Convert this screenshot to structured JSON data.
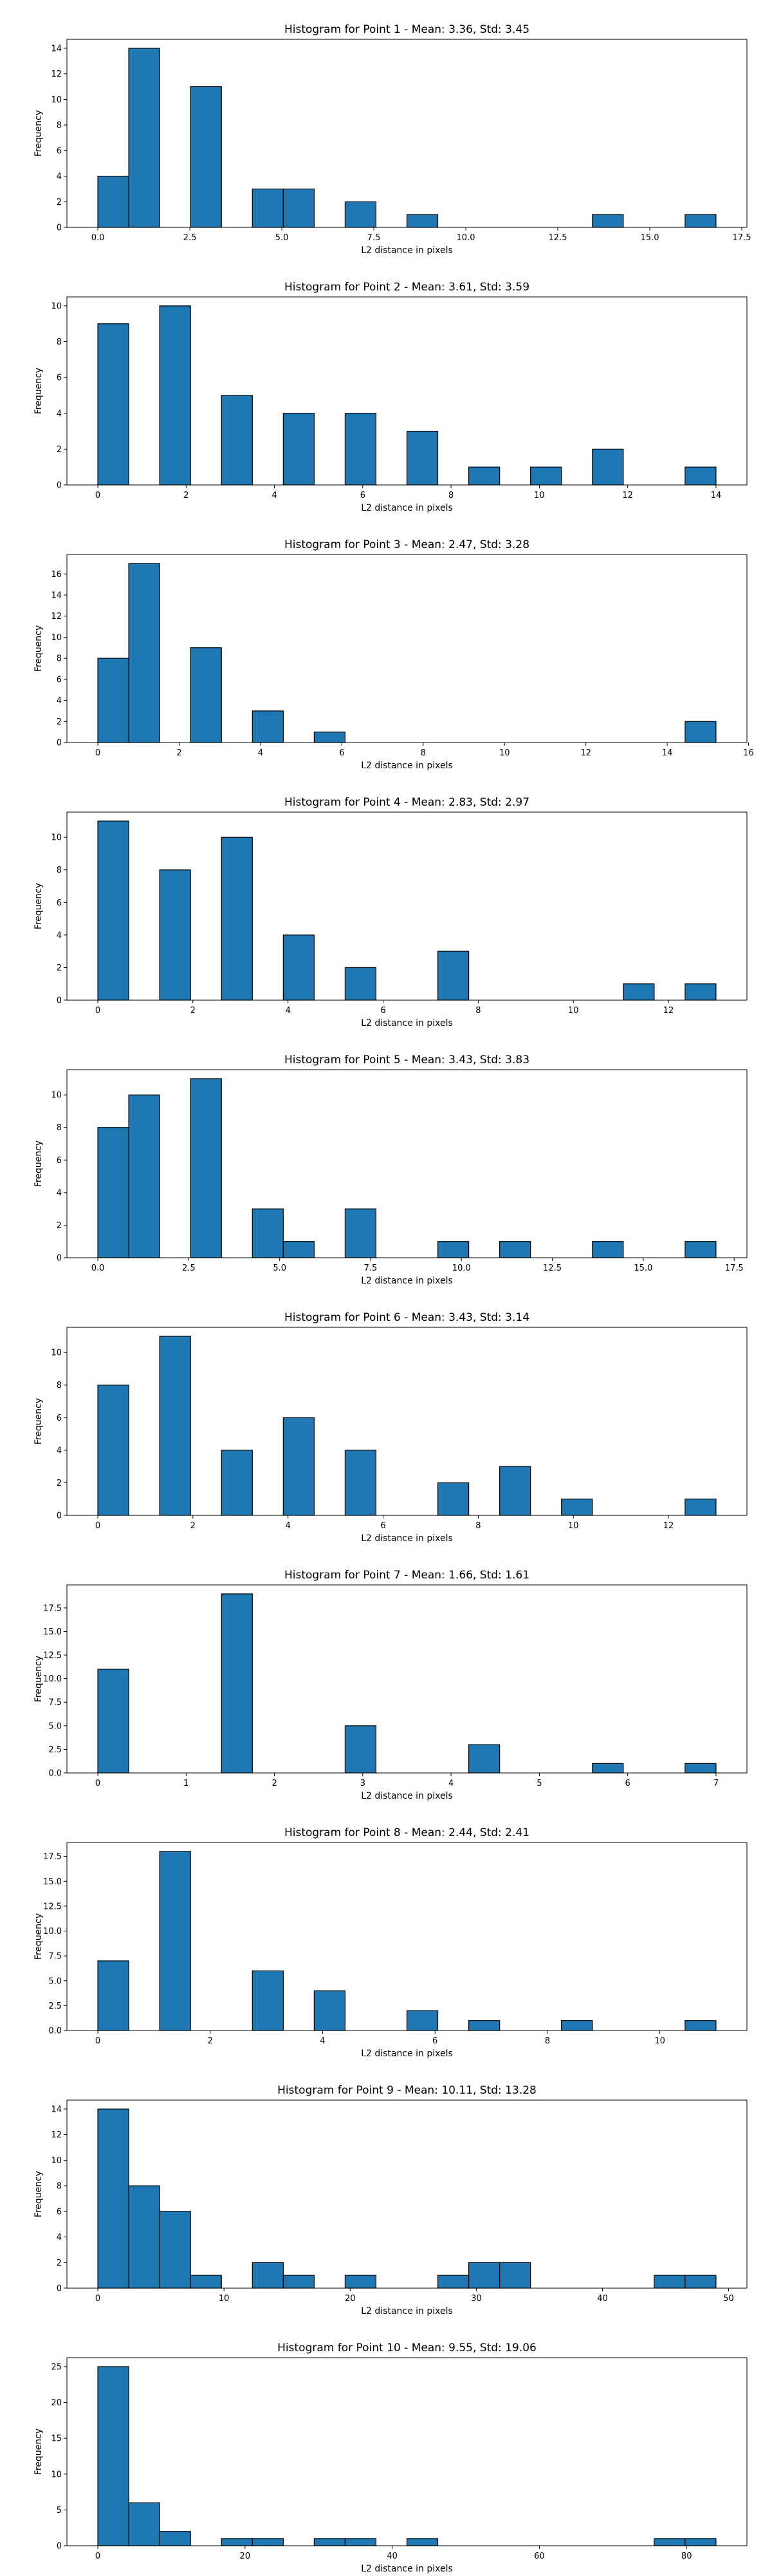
{
  "chart_data": [
    {
      "type": "bar",
      "title": "Histogram for Point 1 - Mean: 3.36, Std: 3.45",
      "xlabel": "L2 distance in pixels",
      "ylabel": "Frequency",
      "grid": false,
      "bar_color": "#1f77b4",
      "edge_color": "#000000",
      "bins": [
        [
          0,
          0.84,
          4
        ],
        [
          0.84,
          1.68,
          14
        ],
        [
          2.52,
          3.36,
          11
        ],
        [
          4.2,
          5.04,
          3
        ],
        [
          5.04,
          5.88,
          3
        ],
        [
          6.72,
          7.56,
          2
        ],
        [
          8.4,
          9.24,
          1
        ],
        [
          13.44,
          14.28,
          1
        ],
        [
          15.96,
          16.8,
          1
        ]
      ],
      "xlim": [
        -0.84,
        17.64
      ],
      "ylim": [
        0,
        14.7
      ],
      "xticks": [
        0,
        2.5,
        5,
        7.5,
        10,
        12.5,
        15,
        17.5
      ],
      "xtick_labels": [
        "0.0",
        "2.5",
        "5.0",
        "7.5",
        "10.0",
        "12.5",
        "15.0",
        "17.5"
      ],
      "yticks": [
        0,
        2,
        4,
        6,
        8,
        10,
        12,
        14
      ],
      "ytick_labels": [
        "0",
        "2",
        "4",
        "6",
        "8",
        "10",
        "12",
        "14"
      ]
    },
    {
      "type": "bar",
      "title": "Histogram for Point 2 - Mean: 3.61, Std: 3.59",
      "xlabel": "L2 distance in pixels",
      "ylabel": "Frequency",
      "grid": false,
      "bar_color": "#1f77b4",
      "edge_color": "#000000",
      "bins": [
        [
          0,
          0.7,
          9
        ],
        [
          1.4,
          2.1,
          10
        ],
        [
          2.8,
          3.5,
          5
        ],
        [
          4.2,
          4.9,
          4
        ],
        [
          5.6,
          6.3,
          4
        ],
        [
          7,
          7.7,
          3
        ],
        [
          8.4,
          9.1,
          1
        ],
        [
          9.8,
          10.5,
          1
        ],
        [
          11.2,
          11.9,
          2
        ],
        [
          13.3,
          14,
          1
        ]
      ],
      "xlim": [
        -0.7,
        14.7
      ],
      "ylim": [
        0,
        10.5
      ],
      "xticks": [
        0,
        2,
        4,
        6,
        8,
        10,
        12,
        14
      ],
      "xtick_labels": [
        "0",
        "2",
        "4",
        "6",
        "8",
        "10",
        "12",
        "14"
      ],
      "yticks": [
        0,
        2,
        4,
        6,
        8,
        10
      ],
      "ytick_labels": [
        "0",
        "2",
        "4",
        "6",
        "8",
        "10"
      ]
    },
    {
      "type": "bar",
      "title": "Histogram for Point 3 - Mean: 2.47, Std: 3.28",
      "xlabel": "L2 distance in pixels",
      "ylabel": "Frequency",
      "grid": false,
      "bar_color": "#1f77b4",
      "edge_color": "#000000",
      "bins": [
        [
          0,
          0.76,
          8
        ],
        [
          0.76,
          1.52,
          17
        ],
        [
          2.28,
          3.04,
          9
        ],
        [
          3.8,
          4.56,
          3
        ],
        [
          5.32,
          6.08,
          1
        ],
        [
          14.44,
          15.2,
          2
        ]
      ],
      "xlim": [
        -0.76,
        15.96
      ],
      "ylim": [
        0,
        17.85
      ],
      "xticks": [
        0,
        2,
        4,
        6,
        8,
        10,
        12,
        14,
        16
      ],
      "xtick_labels": [
        "0",
        "2",
        "4",
        "6",
        "8",
        "10",
        "12",
        "14",
        "16"
      ],
      "yticks": [
        0,
        2,
        4,
        6,
        8,
        10,
        12,
        14,
        16
      ],
      "ytick_labels": [
        "0",
        "2",
        "4",
        "6",
        "8",
        "10",
        "12",
        "14",
        "16"
      ]
    },
    {
      "type": "bar",
      "title": "Histogram for Point 4 - Mean: 2.83, Std: 2.97",
      "xlabel": "L2 distance in pixels",
      "ylabel": "Frequency",
      "grid": false,
      "bar_color": "#1f77b4",
      "edge_color": "#000000",
      "bins": [
        [
          0,
          0.65,
          11
        ],
        [
          1.3,
          1.95,
          8
        ],
        [
          2.6,
          3.25,
          10
        ],
        [
          3.9,
          4.55,
          4
        ],
        [
          5.2,
          5.85,
          2
        ],
        [
          7.15,
          7.8,
          3
        ],
        [
          11.05,
          11.7,
          1
        ],
        [
          12.35,
          13,
          1
        ]
      ],
      "xlim": [
        -0.65,
        13.65
      ],
      "ylim": [
        0,
        11.55
      ],
      "xticks": [
        0,
        2,
        4,
        6,
        8,
        10,
        12
      ],
      "xtick_labels": [
        "0",
        "2",
        "4",
        "6",
        "8",
        "10",
        "12"
      ],
      "yticks": [
        0,
        2,
        4,
        6,
        8,
        10
      ],
      "ytick_labels": [
        "0",
        "2",
        "4",
        "6",
        "8",
        "10"
      ]
    },
    {
      "type": "bar",
      "title": "Histogram for Point 5 - Mean: 3.43, Std: 3.83",
      "xlabel": "L2 distance in pixels",
      "ylabel": "Frequency",
      "grid": false,
      "bar_color": "#1f77b4",
      "edge_color": "#000000",
      "bins": [
        [
          0,
          0.85,
          8
        ],
        [
          0.85,
          1.7,
          10
        ],
        [
          2.55,
          3.4,
          11
        ],
        [
          4.25,
          5.1,
          3
        ],
        [
          5.1,
          5.95,
          1
        ],
        [
          6.8,
          7.65,
          3
        ],
        [
          9.35,
          10.2,
          1
        ],
        [
          11.05,
          11.9,
          1
        ],
        [
          13.6,
          14.45,
          1
        ],
        [
          16.15,
          17,
          1
        ]
      ],
      "xlim": [
        -0.85,
        17.85
      ],
      "ylim": [
        0,
        11.55
      ],
      "xticks": [
        0,
        2.5,
        5,
        7.5,
        10,
        12.5,
        15,
        17.5
      ],
      "xtick_labels": [
        "0.0",
        "2.5",
        "5.0",
        "7.5",
        "10.0",
        "12.5",
        "15.0",
        "17.5"
      ],
      "yticks": [
        0,
        2,
        4,
        6,
        8,
        10
      ],
      "ytick_labels": [
        "0",
        "2",
        "4",
        "6",
        "8",
        "10"
      ]
    },
    {
      "type": "bar",
      "title": "Histogram for Point 6 - Mean: 3.43, Std: 3.14",
      "xlabel": "L2 distance in pixels",
      "ylabel": "Frequency",
      "grid": false,
      "bar_color": "#1f77b4",
      "edge_color": "#000000",
      "bins": [
        [
          0,
          0.65,
          8
        ],
        [
          1.3,
          1.95,
          11
        ],
        [
          2.6,
          3.25,
          4
        ],
        [
          3.9,
          4.55,
          6
        ],
        [
          5.2,
          5.85,
          4
        ],
        [
          7.15,
          7.8,
          2
        ],
        [
          8.45,
          9.1,
          3
        ],
        [
          9.75,
          10.4,
          1
        ],
        [
          12.35,
          13,
          1
        ]
      ],
      "xlim": [
        -0.65,
        13.65
      ],
      "ylim": [
        0,
        11.55
      ],
      "xticks": [
        0,
        2,
        4,
        6,
        8,
        10,
        12
      ],
      "xtick_labels": [
        "0",
        "2",
        "4",
        "6",
        "8",
        "10",
        "12"
      ],
      "yticks": [
        0,
        2,
        4,
        6,
        8,
        10
      ],
      "ytick_labels": [
        "0",
        "2",
        "4",
        "6",
        "8",
        "10"
      ]
    },
    {
      "type": "bar",
      "title": "Histogram for Point 7 - Mean: 1.66, Std: 1.61",
      "xlabel": "L2 distance in pixels",
      "ylabel": "Frequency",
      "grid": false,
      "bar_color": "#1f77b4",
      "edge_color": "#000000",
      "bins": [
        [
          0,
          0.35,
          11
        ],
        [
          1.4,
          1.75,
          19
        ],
        [
          2.8,
          3.15,
          5
        ],
        [
          4.2,
          4.55,
          3
        ],
        [
          5.6,
          5.95,
          1
        ],
        [
          6.65,
          7,
          1
        ]
      ],
      "xlim": [
        -0.35,
        7.35
      ],
      "ylim": [
        0,
        19.95
      ],
      "xticks": [
        0,
        1,
        2,
        3,
        4,
        5,
        6,
        7
      ],
      "xtick_labels": [
        "0",
        "1",
        "2",
        "3",
        "4",
        "5",
        "6",
        "7"
      ],
      "yticks": [
        0,
        2.5,
        5,
        7.5,
        10,
        12.5,
        15,
        17.5
      ],
      "ytick_labels": [
        "0.0",
        "2.5",
        "5.0",
        "7.5",
        "10.0",
        "12.5",
        "15.0",
        "17.5"
      ]
    },
    {
      "type": "bar",
      "title": "Histogram for Point 8 - Mean: 2.44, Std: 2.41",
      "xlabel": "L2 distance in pixels",
      "ylabel": "Frequency",
      "grid": false,
      "bar_color": "#1f77b4",
      "edge_color": "#000000",
      "bins": [
        [
          0,
          0.55,
          7
        ],
        [
          1.1,
          1.65,
          18
        ],
        [
          2.75,
          3.3,
          6
        ],
        [
          3.85,
          4.4,
          4
        ],
        [
          5.5,
          6.05,
          2
        ],
        [
          6.6,
          7.15,
          1
        ],
        [
          8.25,
          8.8,
          1
        ],
        [
          10.45,
          11,
          1
        ]
      ],
      "xlim": [
        -0.55,
        11.55
      ],
      "ylim": [
        0,
        18.9
      ],
      "xticks": [
        0,
        2,
        4,
        6,
        8,
        10
      ],
      "xtick_labels": [
        "0",
        "2",
        "4",
        "6",
        "8",
        "10"
      ],
      "yticks": [
        0,
        2.5,
        5,
        7.5,
        10,
        12.5,
        15,
        17.5
      ],
      "ytick_labels": [
        "0.0",
        "2.5",
        "5.0",
        "7.5",
        "10.0",
        "12.5",
        "15.0",
        "17.5"
      ]
    },
    {
      "type": "bar",
      "title": "Histogram for Point 9 - Mean: 10.11, Std: 13.28",
      "xlabel": "L2 distance in pixels",
      "ylabel": "Frequency",
      "grid": false,
      "bar_color": "#1f77b4",
      "edge_color": "#000000",
      "bins": [
        [
          0,
          2.45,
          14
        ],
        [
          2.45,
          4.9,
          8
        ],
        [
          4.9,
          7.35,
          6
        ],
        [
          7.35,
          9.8,
          1
        ],
        [
          12.25,
          14.7,
          2
        ],
        [
          14.7,
          17.15,
          1
        ],
        [
          19.6,
          22.05,
          1
        ],
        [
          26.95,
          29.4,
          1
        ],
        [
          29.4,
          31.85,
          2
        ],
        [
          31.85,
          34.3,
          2
        ],
        [
          44.1,
          46.55,
          1
        ],
        [
          46.55,
          49,
          1
        ]
      ],
      "xlim": [
        -2.45,
        51.45
      ],
      "ylim": [
        0,
        14.7
      ],
      "xticks": [
        0,
        10,
        20,
        30,
        40,
        50
      ],
      "xtick_labels": [
        "0",
        "10",
        "20",
        "30",
        "40",
        "50"
      ],
      "yticks": [
        0,
        2,
        4,
        6,
        8,
        10,
        12,
        14
      ],
      "ytick_labels": [
        "0",
        "2",
        "4",
        "6",
        "8",
        "10",
        "12",
        "14"
      ]
    },
    {
      "type": "bar",
      "title": "Histogram for Point 10 - Mean: 9.55, Std: 19.06",
      "xlabel": "L2 distance in pixels",
      "ylabel": "Frequency",
      "grid": false,
      "bar_color": "#1f77b4",
      "edge_color": "#000000",
      "bins": [
        [
          0,
          4.2,
          25
        ],
        [
          4.2,
          8.4,
          6
        ],
        [
          8.4,
          12.6,
          2
        ],
        [
          16.8,
          21,
          1
        ],
        [
          21,
          25.2,
          1
        ],
        [
          29.4,
          33.6,
          1
        ],
        [
          33.6,
          37.8,
          1
        ],
        [
          42,
          46.2,
          1
        ],
        [
          75.6,
          79.8,
          1
        ],
        [
          79.8,
          84,
          1
        ]
      ],
      "xlim": [
        -4.2,
        88.2
      ],
      "ylim": [
        0,
        26.25
      ],
      "xticks": [
        0,
        20,
        40,
        60,
        80
      ],
      "xtick_labels": [
        "0",
        "20",
        "40",
        "60",
        "80"
      ],
      "yticks": [
        0,
        5,
        10,
        15,
        20,
        25
      ],
      "ytick_labels": [
        "0",
        "5",
        "10",
        "15",
        "20",
        "25"
      ]
    }
  ]
}
